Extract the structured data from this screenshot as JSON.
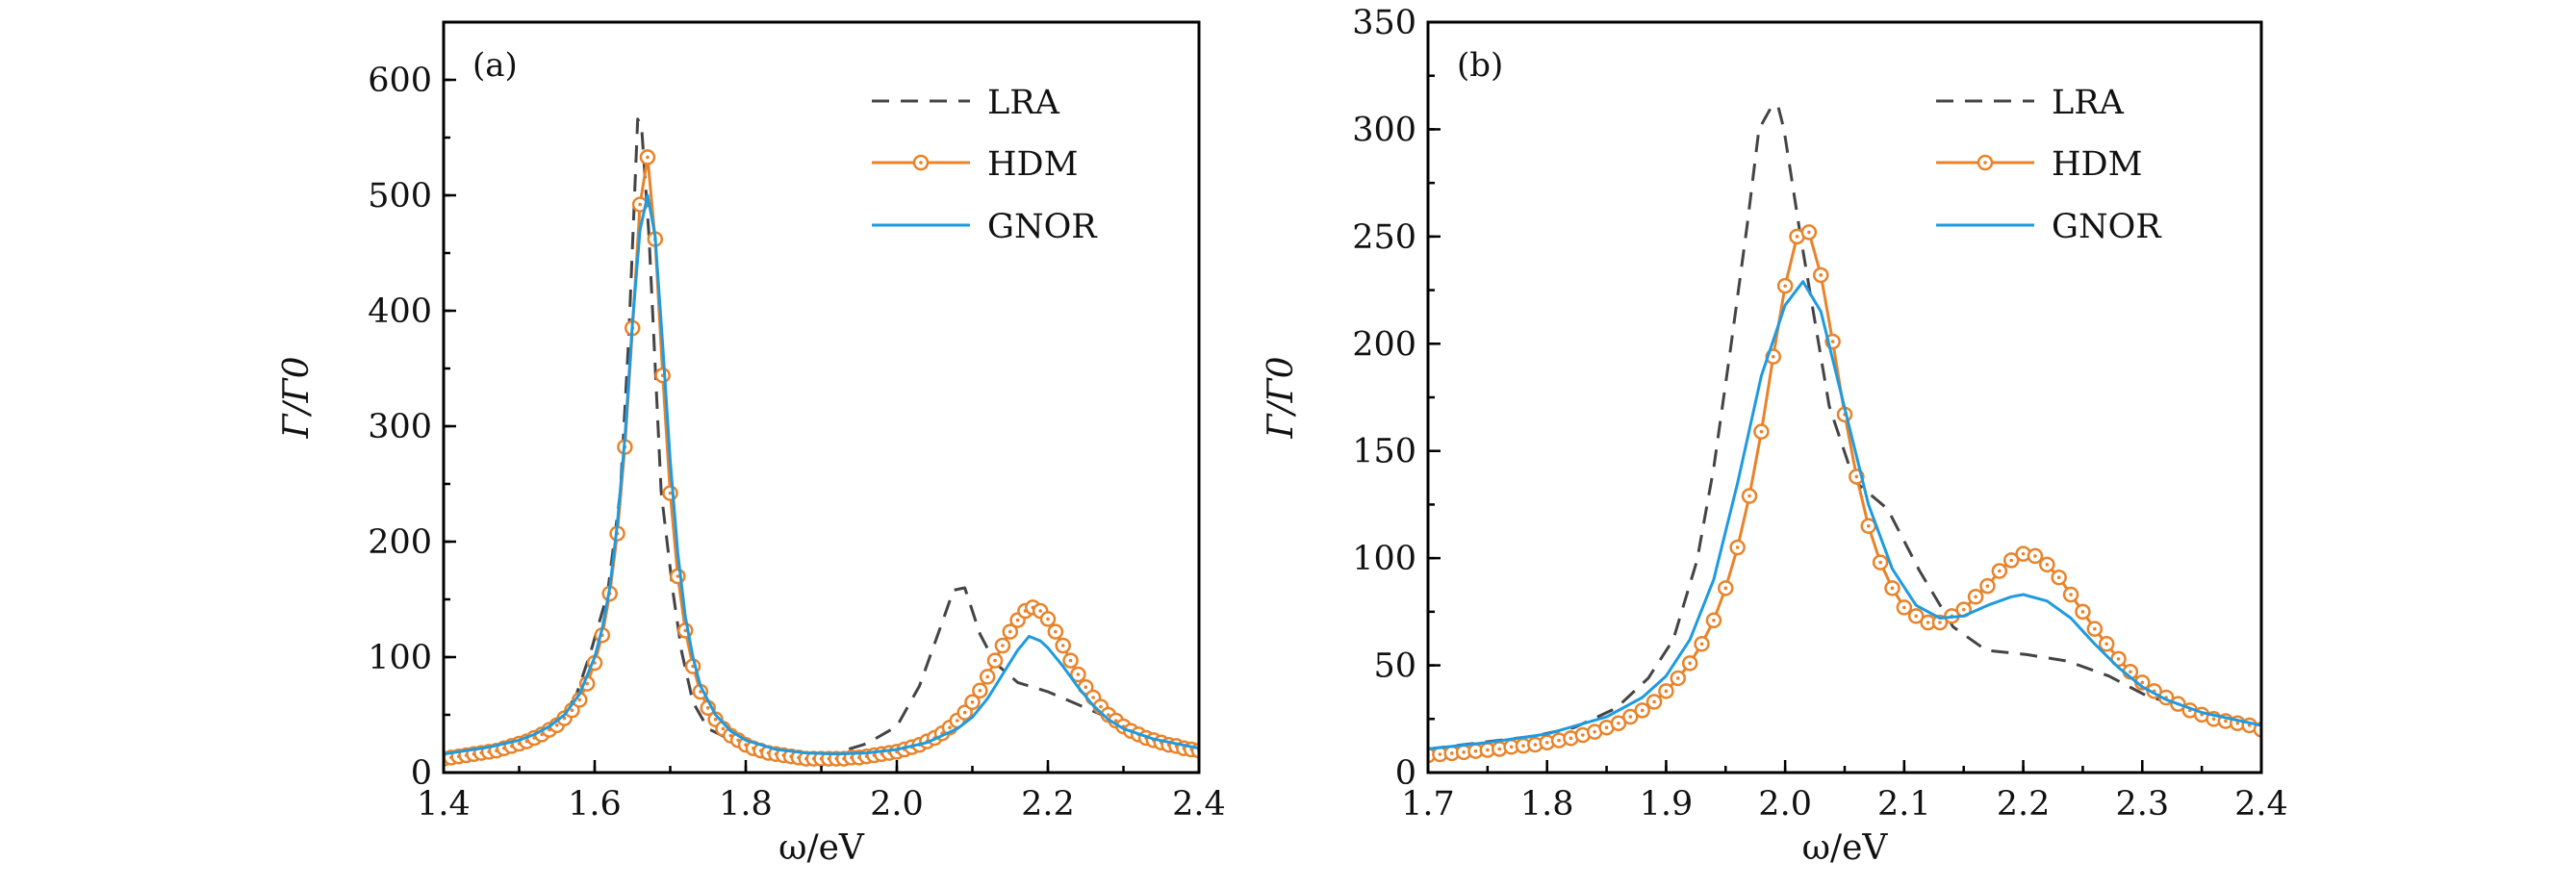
{
  "colors": {
    "LRA": "#444444",
    "HDM": "#E8832A",
    "GNOR": "#1E9BE0",
    "axis": "#000000"
  },
  "chart_data": [
    {
      "type": "line",
      "panel_label": "(a)",
      "xlabel": "ω/eV",
      "ylabel": "Γ/Γ0",
      "xlim": [
        1.4,
        2.4
      ],
      "ylim": [
        0,
        650
      ],
      "xticks": [
        "1.4",
        "1.6",
        "1.8",
        "2.0",
        "2.2",
        "2.4"
      ],
      "yticks": [
        "0",
        "100",
        "200",
        "300",
        "400",
        "500",
        "600"
      ],
      "legend_position": "top-right",
      "series": [
        {
          "name": "LRA",
          "style": "dashed",
          "x": [
            1.4,
            1.5,
            1.55,
            1.575,
            1.595,
            1.617,
            1.634,
            1.645,
            1.657,
            1.662,
            1.672,
            1.688,
            1.704,
            1.715,
            1.73,
            1.75,
            1.8,
            1.85,
            1.9,
            1.92,
            1.96,
            2.0,
            2.03,
            2.06,
            2.075,
            2.09,
            2.11,
            2.13,
            2.16,
            2.2,
            2.25,
            2.3,
            2.35,
            2.4
          ],
          "y": [
            14,
            24,
            42,
            66,
            105,
            155,
            243,
            375,
            566,
            560,
            464,
            243,
            155,
            105,
            61,
            38,
            22,
            16,
            14,
            17,
            25,
            40,
            75,
            130,
            158,
            160,
            120,
            95,
            78,
            70,
            56,
            42,
            30,
            22
          ]
        },
        {
          "name": "HDM",
          "style": "line-with-circles",
          "x0": 1.4,
          "dx": 0.01,
          "y": [
            12,
            13,
            14,
            15,
            16,
            17,
            18,
            19,
            21,
            23,
            25,
            27,
            30,
            33,
            37,
            41,
            47,
            54,
            63,
            77,
            95,
            119,
            155,
            207,
            282,
            385,
            492,
            533,
            462,
            344,
            242,
            170,
            123,
            92,
            70,
            56,
            46,
            38,
            32,
            28,
            24,
            21,
            19,
            17,
            16,
            15,
            14,
            13,
            12,
            12,
            12,
            12,
            12,
            12,
            13,
            13,
            14,
            15,
            16,
            17,
            18,
            20,
            22,
            24,
            27,
            30,
            34,
            39,
            45,
            52,
            61,
            71,
            83,
            97,
            110,
            122,
            132,
            140,
            143,
            140,
            133,
            122,
            110,
            97,
            85,
            74,
            65,
            57,
            50,
            45,
            40,
            36,
            33,
            30,
            28,
            26,
            24,
            23,
            21,
            20,
            19
          ]
        },
        {
          "name": "GNOR",
          "style": "solid",
          "x": [
            1.4,
            1.42,
            1.44,
            1.46,
            1.48,
            1.5,
            1.52,
            1.54,
            1.56,
            1.58,
            1.6,
            1.61,
            1.62,
            1.63,
            1.64,
            1.65,
            1.66,
            1.67,
            1.68,
            1.69,
            1.7,
            1.71,
            1.72,
            1.73,
            1.74,
            1.76,
            1.78,
            1.8,
            1.84,
            1.88,
            1.92,
            1.96,
            2.0,
            2.04,
            2.08,
            2.1,
            2.12,
            2.14,
            2.16,
            2.175,
            2.19,
            2.2,
            2.22,
            2.24,
            2.26,
            2.28,
            2.3,
            2.34,
            2.4
          ],
          "y": [
            16,
            18,
            20,
            22,
            25,
            28,
            33,
            40,
            50,
            68,
            100,
            125,
            160,
            215,
            290,
            390,
            470,
            500,
            465,
            370,
            270,
            190,
            135,
            100,
            75,
            50,
            36,
            28,
            20,
            17,
            16,
            17,
            20,
            26,
            38,
            48,
            64,
            85,
            106,
            118,
            114,
            108,
            92,
            74,
            58,
            46,
            38,
            29,
            21
          ]
        }
      ]
    },
    {
      "type": "line",
      "panel_label": "(b)",
      "xlabel": "ω/eV",
      "ylabel": "Γ/Γ0",
      "xlim": [
        1.7,
        2.4
      ],
      "ylim": [
        0,
        350
      ],
      "xticks": [
        "1.7",
        "1.8",
        "1.9",
        "2.0",
        "2.1",
        "2.2",
        "2.3",
        "2.4"
      ],
      "yticks": [
        "0",
        "50",
        "100",
        "150",
        "200",
        "250",
        "300",
        "350"
      ],
      "legend_position": "top-right",
      "series": [
        {
          "name": "LRA",
          "style": "dashed",
          "x": [
            1.7,
            1.789,
            1.823,
            1.858,
            1.885,
            1.906,
            1.926,
            1.94,
            1.954,
            1.968,
            1.978,
            1.989,
            1.994,
            1.999,
            2.013,
            2.037,
            2.058,
            2.086,
            2.113,
            2.141,
            2.169,
            2.203,
            2.237,
            2.272,
            2.303,
            2.35,
            2.4
          ],
          "y": [
            11,
            17,
            21,
            30,
            44,
            62,
            99,
            142,
            197,
            255,
            300,
            311,
            311,
            300,
            250,
            171,
            136,
            123,
            94,
            68,
            57,
            55,
            52,
            45,
            36,
            28,
            22
          ]
        },
        {
          "name": "HDM",
          "style": "line-with-circles",
          "x0": 1.7,
          "dx": 0.01,
          "y": [
            8,
            8.5,
            9,
            9.5,
            10,
            10.5,
            11,
            12,
            12.5,
            13,
            14,
            15,
            16,
            17.5,
            19,
            21,
            23,
            26,
            29,
            33,
            38,
            44,
            51,
            60,
            71,
            86,
            105,
            129,
            159,
            194,
            227,
            250,
            252,
            232,
            201,
            167,
            138,
            115,
            98,
            86,
            77,
            73,
            70,
            70,
            73,
            76,
            82,
            87,
            94,
            99,
            102,
            101,
            97,
            91,
            83,
            75,
            67,
            60,
            53,
            47,
            42,
            38,
            35,
            32,
            29,
            27,
            25,
            24,
            23,
            22,
            20
          ]
        },
        {
          "name": "GNOR",
          "style": "solid",
          "x": [
            1.7,
            1.75,
            1.8,
            1.85,
            1.88,
            1.9,
            1.92,
            1.94,
            1.96,
            1.98,
            2.0,
            2.015,
            2.03,
            2.05,
            2.07,
            2.09,
            2.11,
            2.13,
            2.15,
            2.17,
            2.19,
            2.2,
            2.22,
            2.24,
            2.26,
            2.28,
            2.3,
            2.32,
            2.35,
            2.4
          ],
          "y": [
            11,
            14,
            18,
            26,
            35,
            45,
            62,
            90,
            135,
            185,
            218,
            229,
            215,
            170,
            125,
            95,
            78,
            72,
            73,
            78,
            82,
            83,
            80,
            72,
            60,
            49,
            40,
            34,
            28,
            22
          ]
        }
      ]
    }
  ]
}
